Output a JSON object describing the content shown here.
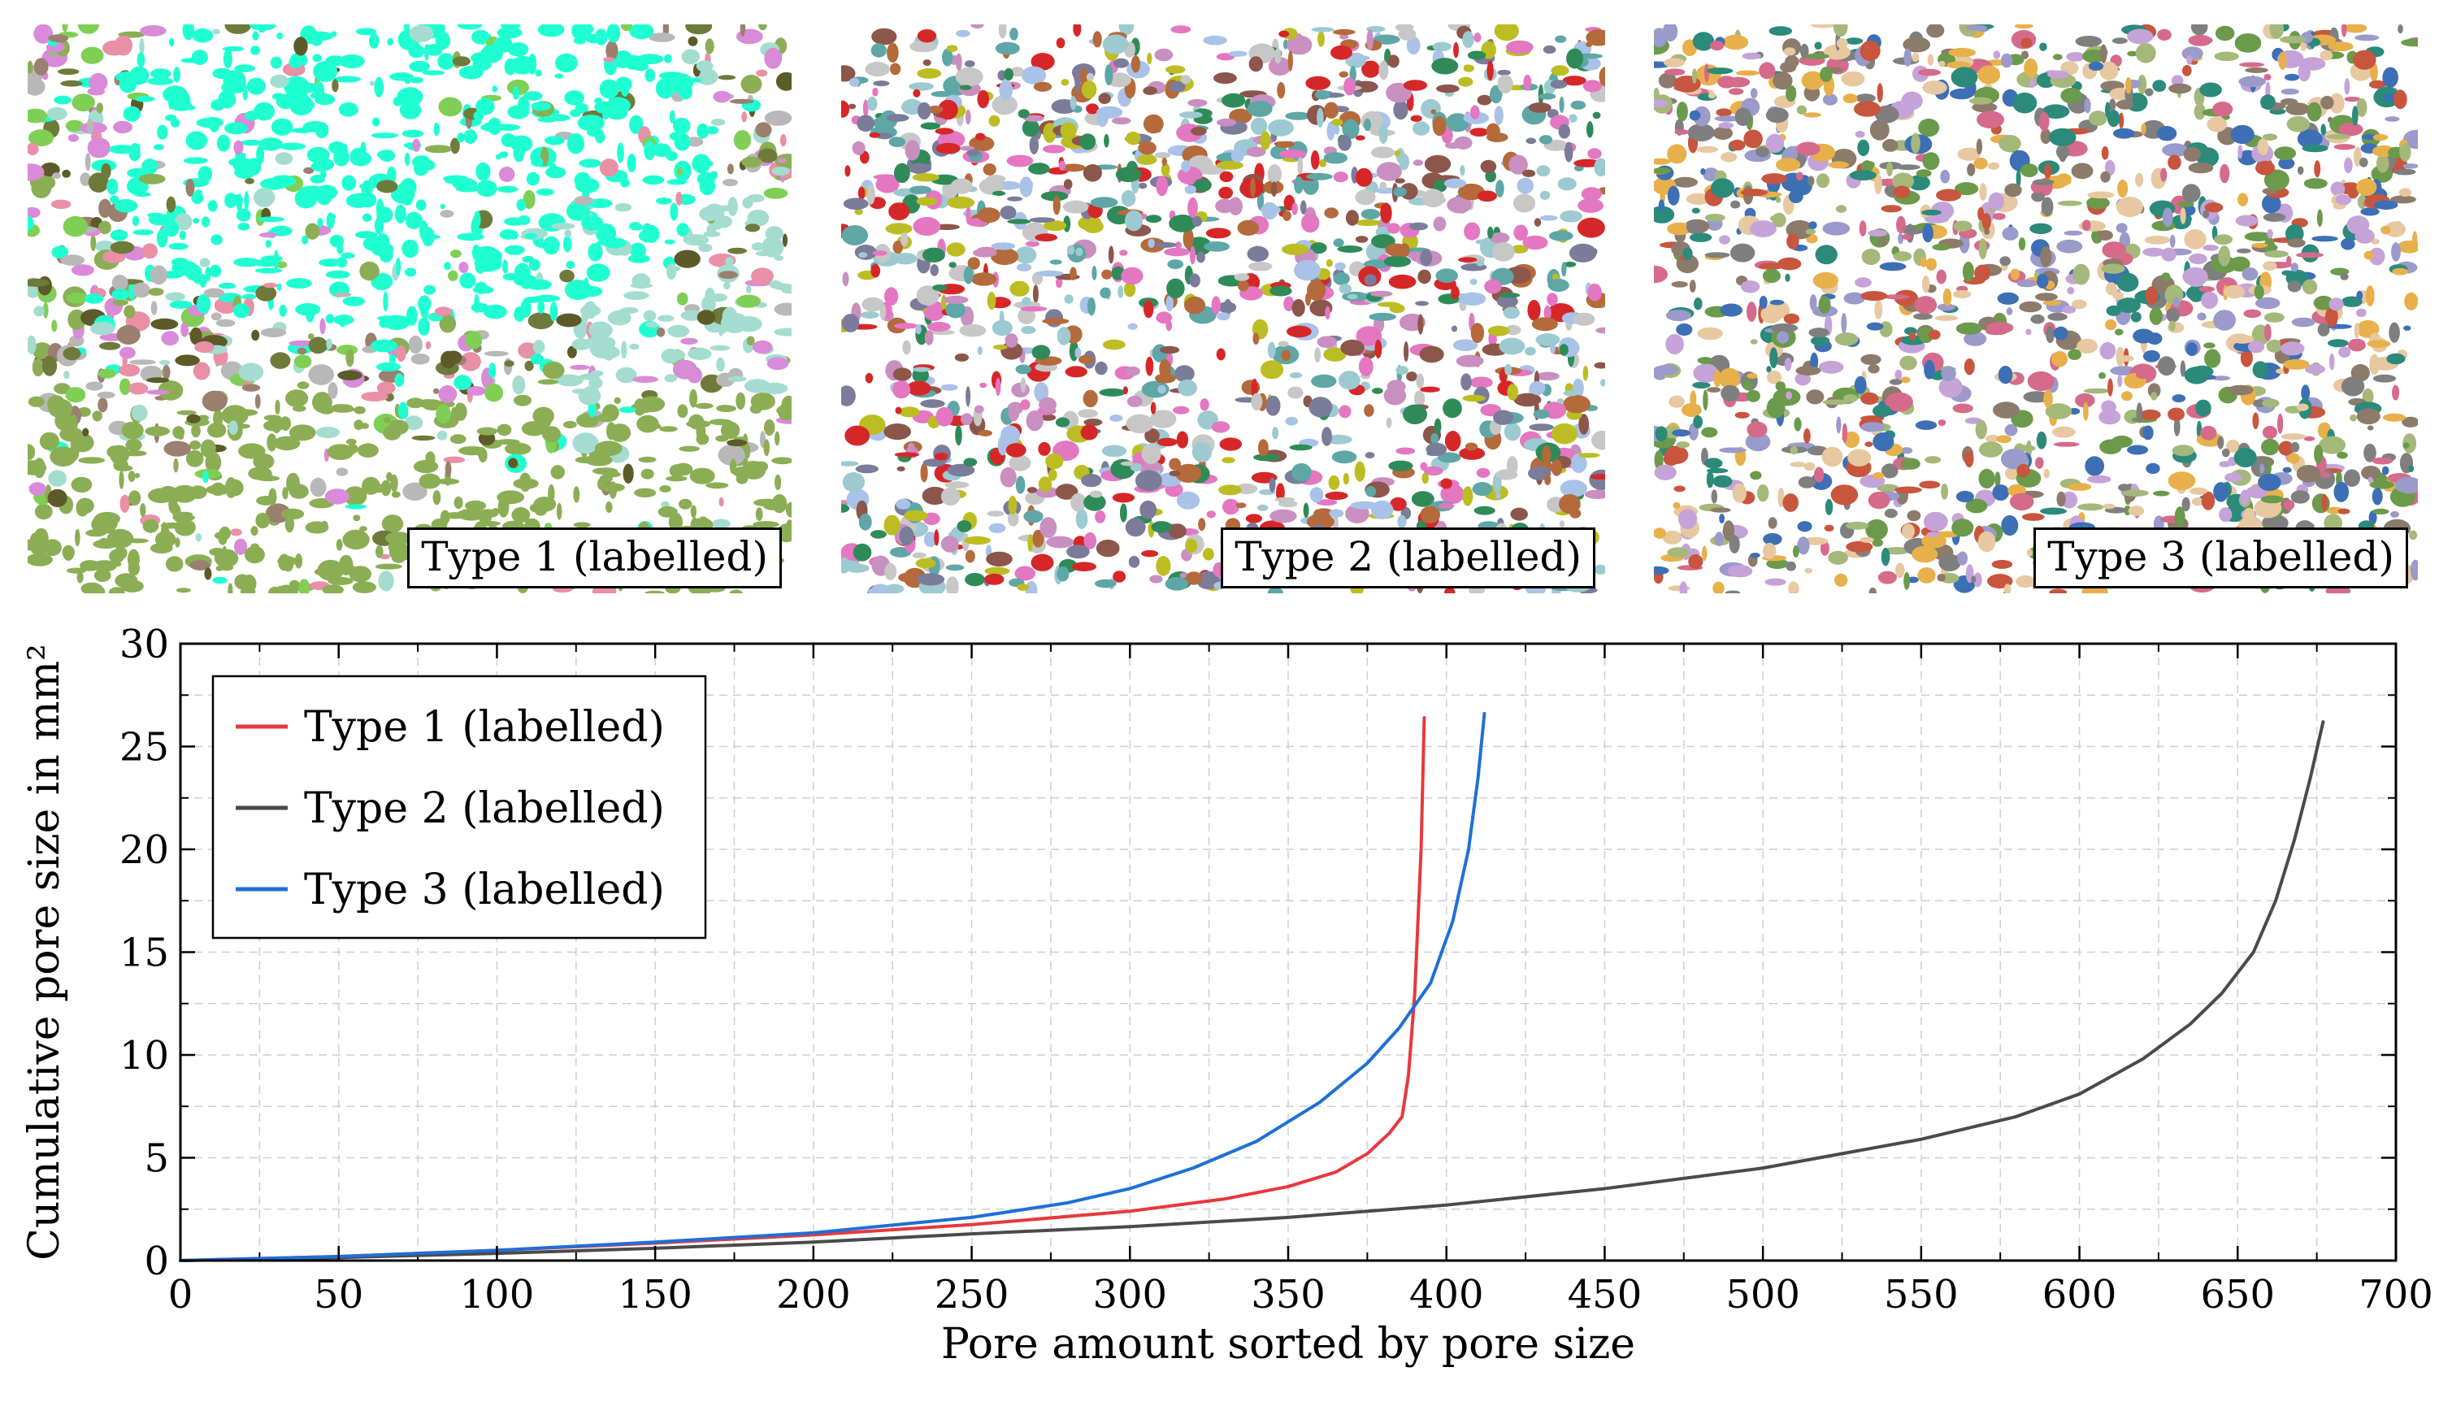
{
  "panels": [
    {
      "label": "Type 1 (labelled)",
      "palette": [
        "#1fffd2",
        "#8bae55",
        "#a4ddd0",
        "#6e7a3a",
        "#5c5a28",
        "#d98ad8",
        "#9b7f6f",
        "#b8b8b8",
        "#e98fa6",
        "#7fcf55"
      ]
    },
    {
      "label": "Type 2 (labelled)",
      "palette": [
        "#d62728",
        "#7b7b9a",
        "#c98fc1",
        "#2e8b57",
        "#9ccad0",
        "#b46a3a",
        "#a9c2e8",
        "#e377c2",
        "#8c564b",
        "#bcbd22",
        "#5fa6a6",
        "#c7c7c7"
      ]
    },
    {
      "label": "Type 3 (labelled)",
      "palette": [
        "#8c7a6b",
        "#a4b87a",
        "#d66a8a",
        "#2b8a7a",
        "#c5a3d8",
        "#e8b04b",
        "#7f7f7f",
        "#9a9acb",
        "#c8553d",
        "#6a9a4a",
        "#e7c8a0",
        "#3d6fb5"
      ]
    }
  ],
  "chart_data": {
    "type": "line",
    "xlabel": "Pore amount sorted by pore size",
    "ylabel": "Cumulative pore size  in mm²",
    "xlim": [
      0,
      700
    ],
    "ylim": [
      0,
      30
    ],
    "xticks": [
      "0",
      "50",
      "100",
      "150",
      "200",
      "250",
      "300",
      "350",
      "400",
      "450",
      "500",
      "550",
      "600",
      "650",
      "700"
    ],
    "yticks": [
      "0",
      "5",
      "10",
      "15",
      "20",
      "25",
      "30"
    ],
    "legend_position": "top-left",
    "series": [
      {
        "name": "Type 1 (labelled)",
        "color": "#e8383d",
        "x": [
          0,
          50,
          100,
          150,
          200,
          250,
          300,
          330,
          350,
          365,
          375,
          382,
          386,
          388,
          390,
          392,
          393
        ],
        "y": [
          0,
          0.2,
          0.5,
          0.85,
          1.25,
          1.75,
          2.4,
          3.0,
          3.6,
          4.3,
          5.2,
          6.2,
          7.0,
          9.0,
          13.0,
          20.0,
          26.4
        ]
      },
      {
        "name": "Type 2 (labelled)",
        "color": "#4a4a4a",
        "x": [
          0,
          50,
          100,
          150,
          200,
          250,
          300,
          350,
          400,
          450,
          500,
          550,
          580,
          600,
          620,
          635,
          645,
          655,
          662,
          668,
          673,
          677
        ],
        "y": [
          0,
          0.15,
          0.35,
          0.6,
          0.9,
          1.3,
          1.65,
          2.1,
          2.7,
          3.5,
          4.5,
          5.9,
          7.0,
          8.1,
          9.8,
          11.5,
          13.0,
          15.0,
          17.5,
          20.5,
          23.5,
          26.2
        ]
      },
      {
        "name": "Type 3 (labelled)",
        "color": "#1f6fd6",
        "x": [
          0,
          50,
          100,
          150,
          200,
          250,
          280,
          300,
          320,
          340,
          360,
          375,
          385,
          395,
          402,
          407,
          410,
          412
        ],
        "y": [
          0,
          0.2,
          0.5,
          0.9,
          1.35,
          2.1,
          2.8,
          3.5,
          4.5,
          5.8,
          7.7,
          9.6,
          11.3,
          13.5,
          16.5,
          20.0,
          23.5,
          26.6
        ]
      }
    ]
  }
}
